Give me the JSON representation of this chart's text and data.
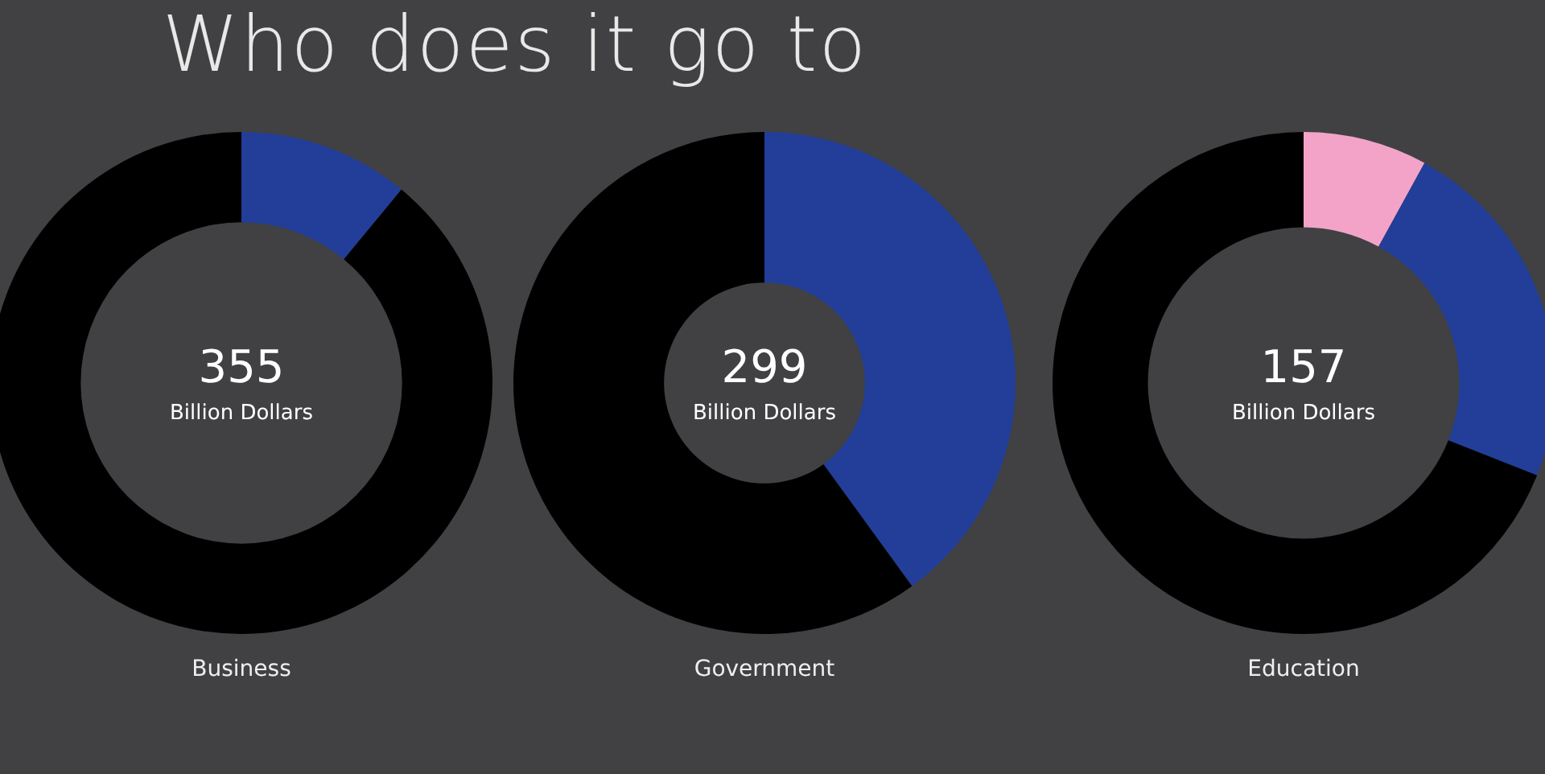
{
  "chart_data": [
    {
      "type": "donut",
      "title": "Who does it go to",
      "xlabel": "Business",
      "categories": [
        null,
        null
      ],
      "values": [
        11,
        89
      ],
      "colors": [
        "#223e99",
        "#000000"
      ],
      "annotations": [
        "355",
        "Billion Dollars"
      ]
    },
    {
      "type": "donut",
      "xlabel": "Government",
      "categories": [
        null,
        null
      ],
      "values": [
        40,
        60
      ],
      "colors": [
        "#223e99",
        "#000000"
      ],
      "annotations": [
        "299",
        "Billion Dollars"
      ]
    },
    {
      "type": "donut",
      "xlabel": "Education",
      "categories": [
        null,
        null,
        null
      ],
      "values": [
        8,
        23,
        69
      ],
      "colors": [
        "#f3a3c8",
        "#223e99",
        "#000000"
      ],
      "annotations": [
        "157",
        "Billion Dollars"
      ]
    }
  ]
}
